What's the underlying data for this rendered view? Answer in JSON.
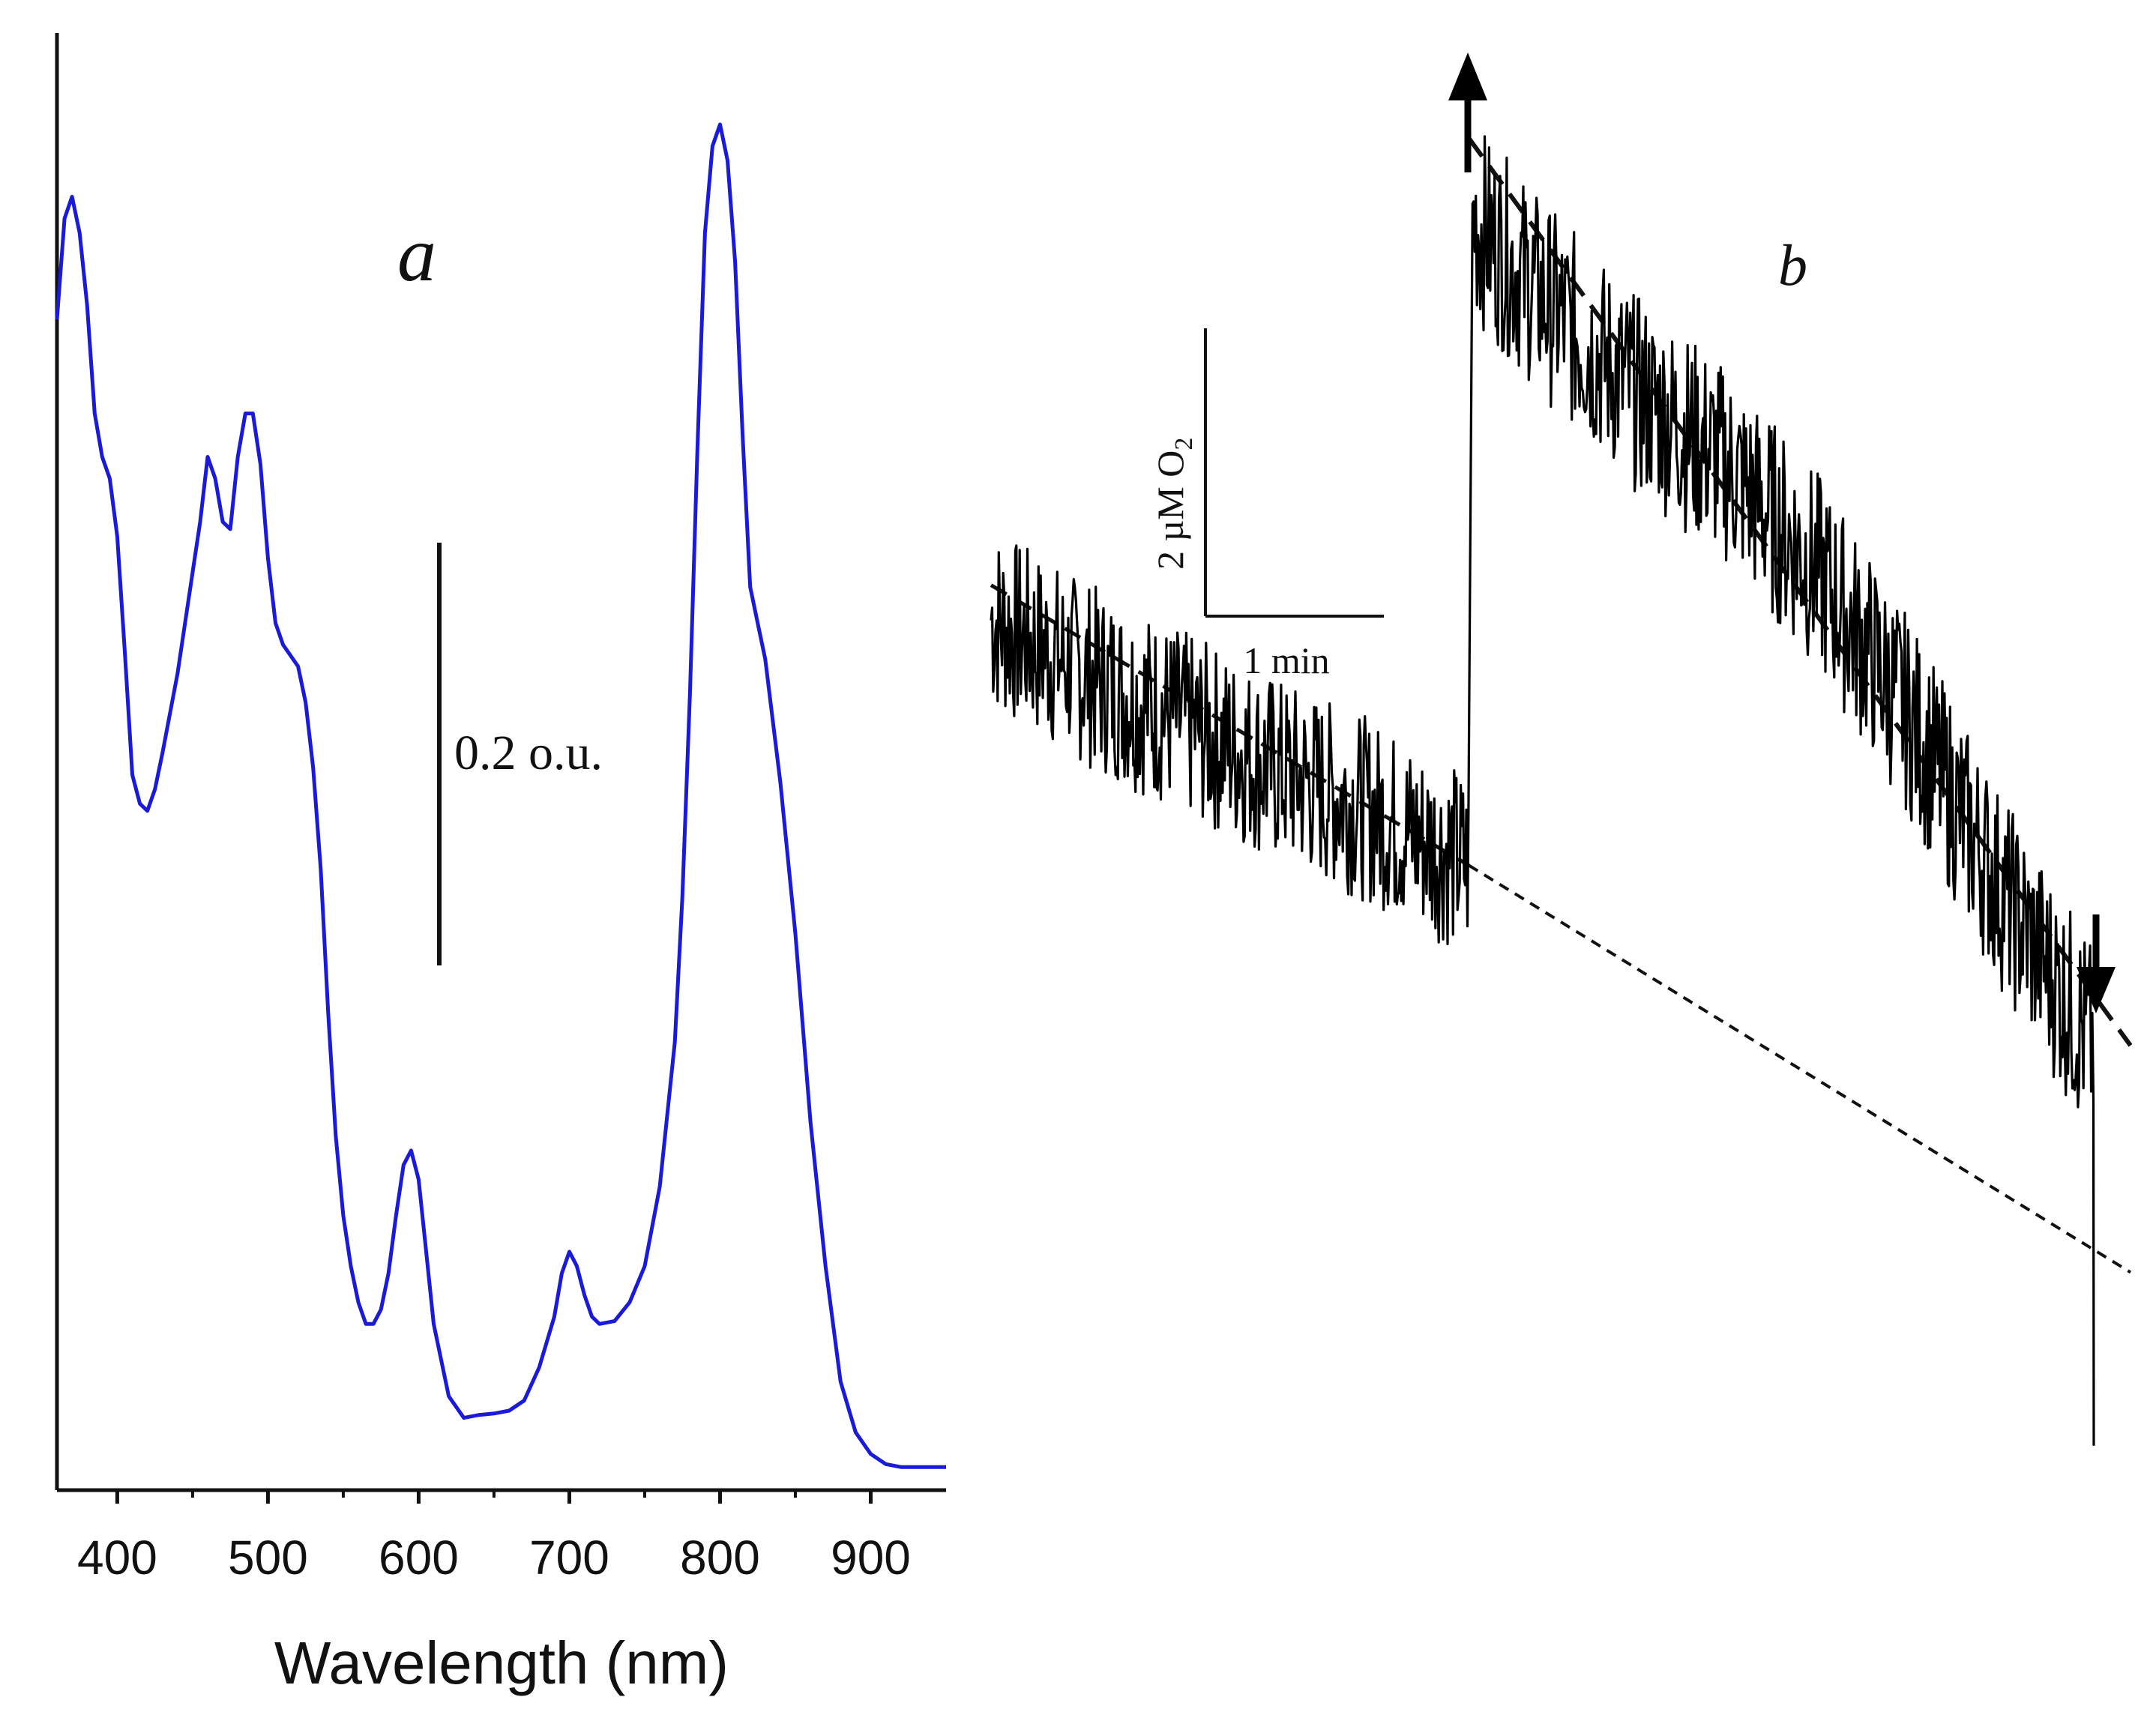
{
  "chart_data": [
    {
      "panel": "a",
      "type": "line",
      "title": "a",
      "xlabel": "Wavelength (nm)",
      "ylabel": "",
      "xlim": [
        360,
        950
      ],
      "ylim": [
        0,
        1
      ],
      "x_ticks": [
        400,
        500,
        600,
        700,
        800,
        900
      ],
      "scale_bar_label": "0.2 o.u.",
      "scale_bar_value": 0.2,
      "color": "#1a1ad8",
      "series": [
        {
          "name": "absorption spectrum",
          "x": [
            360,
            365,
            370,
            375,
            380,
            385,
            390,
            395,
            400,
            405,
            410,
            415,
            420,
            425,
            430,
            440,
            450,
            455,
            460,
            465,
            470,
            475,
            480,
            485,
            490,
            495,
            500,
            505,
            510,
            520,
            525,
            530,
            535,
            540,
            545,
            550,
            555,
            560,
            565,
            570,
            575,
            580,
            585,
            590,
            595,
            600,
            605,
            610,
            620,
            630,
            640,
            650,
            660,
            670,
            680,
            690,
            695,
            700,
            705,
            710,
            715,
            720,
            730,
            740,
            750,
            760,
            770,
            775,
            780,
            785,
            790,
            795,
            800,
            805,
            810,
            815,
            820,
            825,
            830,
            840,
            850,
            860,
            870,
            880,
            890,
            900,
            910,
            920,
            930,
            950
          ],
          "y": [
            0.81,
            0.88,
            0.895,
            0.87,
            0.82,
            0.745,
            0.715,
            0.7,
            0.66,
            0.58,
            0.495,
            0.475,
            0.47,
            0.485,
            0.51,
            0.565,
            0.635,
            0.67,
            0.715,
            0.7,
            0.67,
            0.665,
            0.715,
            0.745,
            0.745,
            0.71,
            0.645,
            0.6,
            0.585,
            0.57,
            0.545,
            0.5,
            0.43,
            0.33,
            0.245,
            0.19,
            0.155,
            0.13,
            0.115,
            0.115,
            0.125,
            0.15,
            0.19,
            0.225,
            0.235,
            0.215,
            0.165,
            0.115,
            0.065,
            0.05,
            0.052,
            0.053,
            0.055,
            0.062,
            0.085,
            0.12,
            0.15,
            0.165,
            0.155,
            0.135,
            0.12,
            0.115,
            0.117,
            0.13,
            0.155,
            0.21,
            0.31,
            0.41,
            0.55,
            0.72,
            0.87,
            0.93,
            0.945,
            0.92,
            0.85,
            0.73,
            0.625,
            0.6,
            0.575,
            0.49,
            0.385,
            0.255,
            0.155,
            0.075,
            0.04,
            0.025,
            0.018,
            0.016,
            0.016,
            0.016
          ]
        }
      ]
    },
    {
      "panel": "b",
      "type": "line",
      "title": "b",
      "xlabel": "",
      "ylabel": "",
      "xlim": [
        0,
        6.2
      ],
      "ylim": [
        -2,
        8
      ],
      "scale_bar_x_label": "1 min",
      "scale_bar_x_value": 1,
      "scale_bar_y_label": "2 µM O",
      "scale_bar_y_subscript": "2",
      "scale_bar_y_value": 2,
      "light_on_arrow": "up",
      "light_off_arrow": "down",
      "light_on_time": 2.6,
      "light_off_time": 6.0,
      "color": "#000000",
      "series": [
        {
          "name": "O2 trace baseline",
          "x": [
            0,
            0.5,
            1.0,
            1.5,
            2.0,
            2.6
          ],
          "y": [
            4.6,
            4.2,
            3.85,
            3.5,
            3.2,
            2.75
          ]
        },
        {
          "name": "O2 trace illuminated",
          "x": [
            2.62,
            3.0,
            3.5,
            4.0,
            4.5,
            5.0,
            5.5,
            6.0
          ],
          "y": [
            7.6,
            7.0,
            6.3,
            5.75,
            4.95,
            3.85,
            2.55,
            1.4
          ]
        },
        {
          "name": "linear fit before light",
          "x": [
            0,
            2.6
          ],
          "y": [
            4.85,
            2.75
          ]
        },
        {
          "name": "linear fit during light",
          "x": [
            2.6,
            6.2
          ],
          "y": [
            8.2,
            1.4
          ]
        },
        {
          "name": "baseline extrapolation",
          "x": [
            2.6,
            6.2
          ],
          "y": [
            2.75,
            -0.3
          ]
        }
      ]
    }
  ]
}
